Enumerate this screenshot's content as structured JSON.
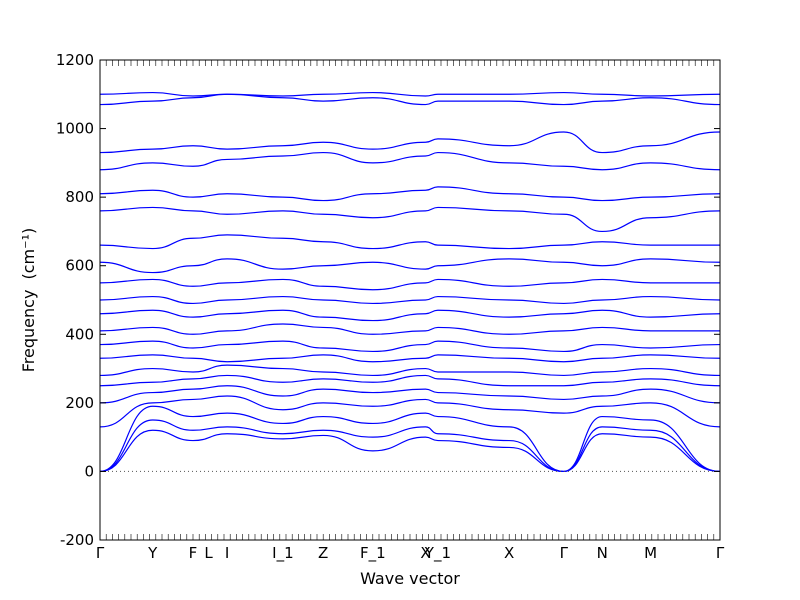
{
  "chart_data": {
    "type": "line",
    "title": "",
    "xlabel": "Wave vector",
    "ylabel": "Frequency",
    "ylabel_unit": "(cm⁻¹)",
    "ylim": [
      -200,
      1200
    ],
    "yticks": [
      -200,
      0,
      200,
      400,
      600,
      800,
      1000,
      1200
    ],
    "high_symmetry_points": [
      {
        "label": "Γ",
        "x": 0
      },
      {
        "label": "Y",
        "x": 0.085
      },
      {
        "label": "F",
        "x": 0.15
      },
      {
        "label": "L",
        "x": 0.175
      },
      {
        "label": "I",
        "x": 0.205
      },
      {
        "label": "I_1",
        "x": 0.295
      },
      {
        "label": "Z",
        "x": 0.36
      },
      {
        "label": "F_1",
        "x": 0.44
      },
      {
        "label": "X",
        "x": 0.525
      },
      {
        "label": "Y_1",
        "x": 0.545
      },
      {
        "label": "X",
        "x": 0.66
      },
      {
        "label": "Γ",
        "x": 0.748
      },
      {
        "label": "N",
        "x": 0.81
      },
      {
        "label": "M",
        "x": 0.888
      },
      {
        "label": "Γ",
        "x": 1.0
      }
    ],
    "zero_line": true,
    "line_color": "#0000ff",
    "series": [
      {
        "values": [
          0,
          120,
          90,
          110,
          95,
          105,
          60,
          100,
          90,
          70,
          0,
          110,
          100,
          0
        ]
      },
      {
        "values": [
          0,
          150,
          120,
          130,
          110,
          120,
          100,
          130,
          110,
          90,
          0,
          130,
          120,
          0
        ]
      },
      {
        "values": [
          0,
          190,
          160,
          170,
          140,
          160,
          140,
          170,
          160,
          130,
          0,
          160,
          150,
          0
        ]
      },
      {
        "values": [
          130,
          200,
          210,
          220,
          180,
          200,
          190,
          210,
          200,
          180,
          170,
          190,
          200,
          130
        ]
      },
      {
        "values": [
          200,
          230,
          240,
          250,
          220,
          240,
          230,
          240,
          230,
          220,
          210,
          220,
          240,
          200
        ]
      },
      {
        "values": [
          250,
          260,
          270,
          280,
          260,
          270,
          260,
          280,
          270,
          250,
          250,
          260,
          270,
          250
        ]
      },
      {
        "values": [
          280,
          300,
          290,
          310,
          300,
          290,
          280,
          300,
          290,
          290,
          280,
          290,
          300,
          280
        ]
      },
      {
        "values": [
          330,
          340,
          330,
          320,
          330,
          340,
          320,
          330,
          340,
          330,
          320,
          330,
          340,
          330
        ]
      },
      {
        "values": [
          370,
          380,
          360,
          370,
          380,
          360,
          350,
          370,
          380,
          360,
          350,
          370,
          360,
          370
        ]
      },
      {
        "values": [
          410,
          420,
          400,
          410,
          430,
          420,
          400,
          410,
          420,
          400,
          410,
          420,
          410,
          410
        ]
      },
      {
        "values": [
          460,
          470,
          450,
          460,
          470,
          450,
          440,
          460,
          470,
          450,
          460,
          470,
          450,
          460
        ]
      },
      {
        "values": [
          500,
          510,
          490,
          500,
          510,
          500,
          490,
          500,
          510,
          500,
          490,
          500,
          510,
          500
        ]
      },
      {
        "values": [
          550,
          560,
          540,
          550,
          560,
          540,
          530,
          550,
          560,
          540,
          550,
          560,
          550,
          550
        ]
      },
      {
        "values": [
          610,
          580,
          600,
          620,
          590,
          600,
          610,
          590,
          600,
          620,
          610,
          600,
          620,
          610
        ]
      },
      {
        "values": [
          660,
          650,
          680,
          690,
          680,
          670,
          650,
          670,
          660,
          650,
          660,
          670,
          660,
          660
        ]
      },
      {
        "values": [
          760,
          770,
          760,
          750,
          760,
          750,
          740,
          760,
          770,
          760,
          750,
          700,
          740,
          760
        ]
      },
      {
        "values": [
          810,
          820,
          800,
          810,
          800,
          790,
          810,
          820,
          830,
          810,
          800,
          790,
          800,
          810
        ]
      },
      {
        "values": [
          880,
          900,
          890,
          910,
          920,
          930,
          900,
          920,
          930,
          900,
          890,
          880,
          900,
          880
        ]
      },
      {
        "values": [
          930,
          940,
          950,
          940,
          950,
          960,
          940,
          960,
          970,
          950,
          990,
          930,
          950,
          990
        ]
      },
      {
        "values": [
          1070,
          1080,
          1090,
          1100,
          1090,
          1080,
          1090,
          1070,
          1080,
          1080,
          1070,
          1080,
          1090,
          1070
        ]
      },
      {
        "values": [
          1100,
          1105,
          1095,
          1100,
          1095,
          1100,
          1105,
          1095,
          1100,
          1100,
          1105,
          1100,
          1095,
          1100
        ]
      }
    ]
  }
}
